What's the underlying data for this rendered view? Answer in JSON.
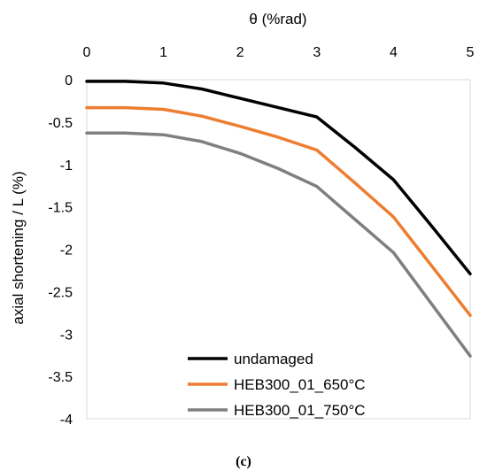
{
  "chart_data": {
    "type": "line",
    "xlabel": "θ (%rad)",
    "ylabel": "axial shortening / L  (%)",
    "xlim": [
      0,
      5
    ],
    "ylim": [
      -4,
      0
    ],
    "xticks": [
      "0",
      "1",
      "2",
      "3",
      "4",
      "5"
    ],
    "yticks": [
      "0",
      "-0.5",
      "-1",
      "-1.5",
      "-2",
      "-2.5",
      "-3",
      "-3.5",
      "-4"
    ],
    "x_axis_position": "top",
    "grid": false,
    "legend_position": "bottom-left",
    "series": [
      {
        "name": "undamaged",
        "color": "#000000",
        "x": [
          0,
          0.5,
          1,
          1.5,
          2,
          2.5,
          3,
          3.5,
          4,
          4.5,
          5
        ],
        "y": [
          -0.02,
          -0.02,
          -0.04,
          -0.11,
          -0.22,
          -0.33,
          -0.44,
          -0.8,
          -1.18,
          -1.73,
          -2.29
        ]
      },
      {
        "name": "HEB300_01_650°C",
        "color": "#ed7d31",
        "x": [
          0,
          0.5,
          1,
          1.5,
          2,
          2.5,
          3,
          3.5,
          4,
          4.5,
          5
        ],
        "y": [
          -0.33,
          -0.33,
          -0.35,
          -0.43,
          -0.55,
          -0.68,
          -0.83,
          -1.22,
          -1.62,
          -2.2,
          -2.78
        ]
      },
      {
        "name": "HEB300_01_750°C",
        "color": "#7f7f7f",
        "x": [
          0,
          0.5,
          1,
          1.5,
          2,
          2.5,
          3,
          3.5,
          4,
          4.5,
          5
        ],
        "y": [
          -0.63,
          -0.63,
          -0.65,
          -0.73,
          -0.87,
          -1.05,
          -1.26,
          -1.65,
          -2.04,
          -2.65,
          -3.26
        ]
      }
    ]
  },
  "caption": "(c)"
}
